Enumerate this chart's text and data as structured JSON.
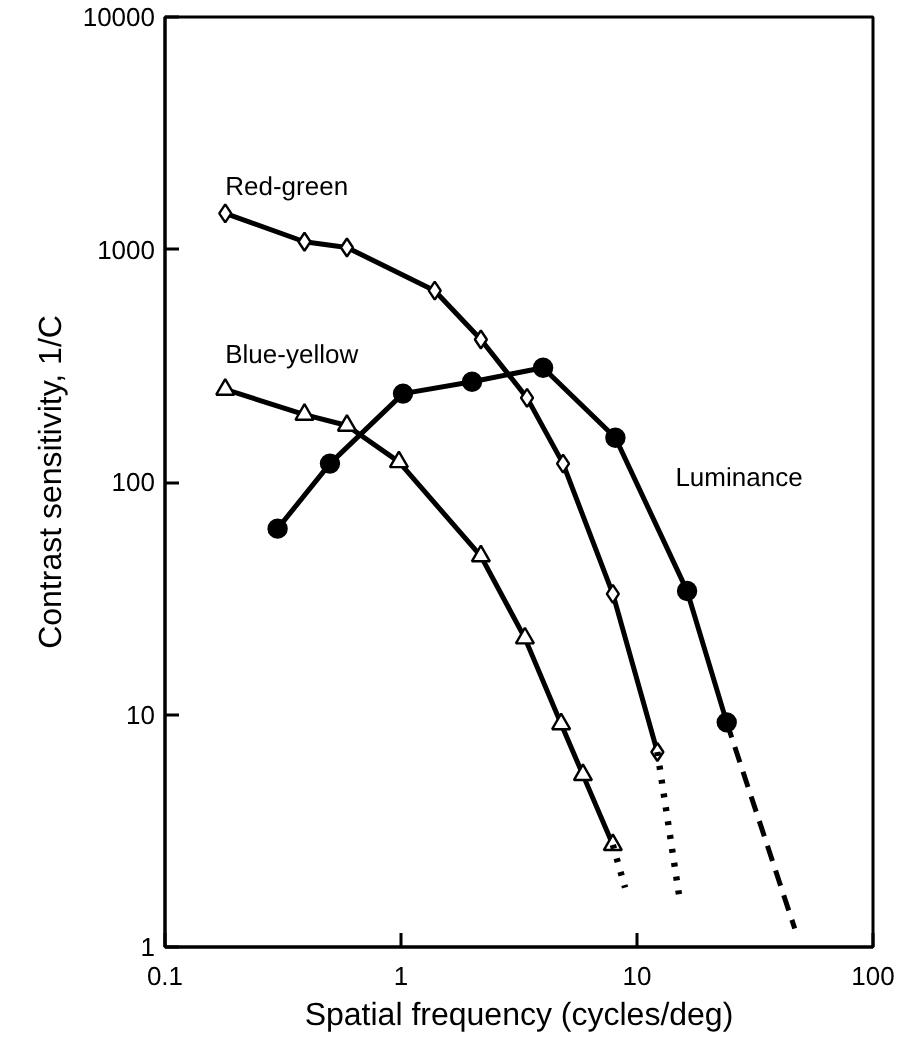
{
  "chart_data": {
    "type": "line",
    "xlabel": "Spatial frequency (cycles/deg)",
    "ylabel": "Contrast sensitivity, 1/C",
    "log": "xy",
    "xlim": [
      0.1,
      100
    ],
    "ylim": [
      1,
      10000
    ],
    "xticks": [
      0.1,
      1,
      10,
      100
    ],
    "yticks": [
      1,
      10,
      100,
      1000,
      10000
    ],
    "grid": false,
    "series": [
      {
        "name": "Red-green",
        "color": "#000000",
        "marker": "diamond",
        "x": [
          0.18,
          0.39,
          0.59,
          1.39,
          2.18,
          3.42,
          4.86,
          7.9,
          12.2
        ],
        "values": [
          1430,
          1080,
          1020,
          665,
          410,
          230,
          120,
          33,
          6.9
        ]
      },
      {
        "name": "Blue-yellow",
        "color": "#000000",
        "marker": "triangle",
        "x": [
          0.18,
          0.39,
          0.59,
          0.98,
          2.18,
          3.35,
          4.77,
          5.9,
          7.9
        ],
        "values": [
          250,
          195,
          175,
          122,
          48,
          21.3,
          9.1,
          5.5,
          2.75
        ]
      },
      {
        "name": "Luminance",
        "color": "#000000",
        "marker": "circle",
        "x": [
          0.3,
          0.5,
          1.02,
          2.0,
          4.0,
          8.1,
          16.3,
          24
        ],
        "values": [
          63,
          120,
          240,
          270,
          310,
          155,
          34,
          9.25
        ]
      },
      {
        "color": "#000000",
        "marker": "none",
        "line_style": "dotted",
        "x": [
          7.9,
          8.9
        ],
        "values": [
          2.75,
          1.8
        ]
      },
      {
        "color": "#000000",
        "marker": "none",
        "line_style": "dotted",
        "x": [
          12.2,
          15.1
        ],
        "values": [
          6.9,
          1.65
        ]
      },
      {
        "color": "#000000",
        "marker": "none",
        "line_style": "dashed",
        "x": [
          24,
          46.6
        ],
        "values": [
          9.25,
          1.2
        ]
      }
    ]
  }
}
